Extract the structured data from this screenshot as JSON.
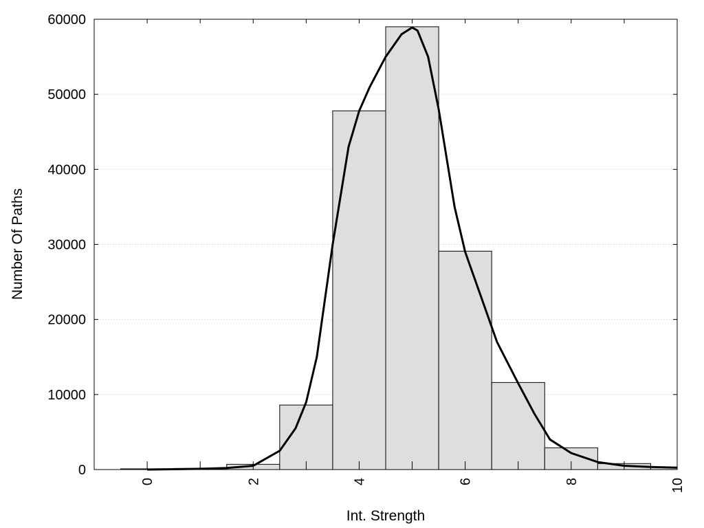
{
  "chart_data": {
    "type": "bar",
    "xlabel": "Int. Strength",
    "ylabel": "Number Of Paths",
    "xlim": [
      -1,
      10
    ],
    "ylim": [
      0,
      60000
    ],
    "x_ticks": [
      "0",
      "2",
      "4",
      "6",
      "8",
      "10"
    ],
    "y_ticks": [
      "0",
      "10000",
      "20000",
      "30000",
      "40000",
      "50000",
      "60000"
    ],
    "grid": true,
    "bars": [
      {
        "x": 0,
        "value": 100
      },
      {
        "x": 1,
        "value": 150
      },
      {
        "x": 2,
        "value": 700
      },
      {
        "x": 3,
        "value": 8600
      },
      {
        "x": 4,
        "value": 47800
      },
      {
        "x": 5,
        "value": 59000
      },
      {
        "x": 6,
        "value": 29100
      },
      {
        "x": 7,
        "value": 11600
      },
      {
        "x": 8,
        "value": 2900
      },
      {
        "x": 9,
        "value": 800
      },
      {
        "x": 10,
        "value": 300
      }
    ],
    "bar_width": 1,
    "curve": [
      {
        "x": 0,
        "y": 0
      },
      {
        "x": 0.5,
        "y": 50
      },
      {
        "x": 1,
        "y": 100
      },
      {
        "x": 1.5,
        "y": 200
      },
      {
        "x": 2,
        "y": 500
      },
      {
        "x": 2.5,
        "y": 2500
      },
      {
        "x": 2.8,
        "y": 5500
      },
      {
        "x": 3,
        "y": 9000
      },
      {
        "x": 3.2,
        "y": 15000
      },
      {
        "x": 3.5,
        "y": 30000
      },
      {
        "x": 3.8,
        "y": 43000
      },
      {
        "x": 4,
        "y": 47800
      },
      {
        "x": 4.2,
        "y": 51000
      },
      {
        "x": 4.5,
        "y": 55000
      },
      {
        "x": 4.8,
        "y": 58000
      },
      {
        "x": 5,
        "y": 58900
      },
      {
        "x": 5.1,
        "y": 58500
      },
      {
        "x": 5.3,
        "y": 55000
      },
      {
        "x": 5.5,
        "y": 48000
      },
      {
        "x": 5.8,
        "y": 35000
      },
      {
        "x": 6,
        "y": 29000
      },
      {
        "x": 6.3,
        "y": 23000
      },
      {
        "x": 6.6,
        "y": 17000
      },
      {
        "x": 7,
        "y": 11500
      },
      {
        "x": 7.3,
        "y": 7500
      },
      {
        "x": 7.6,
        "y": 4000
      },
      {
        "x": 8,
        "y": 2200
      },
      {
        "x": 8.5,
        "y": 1000
      },
      {
        "x": 9,
        "y": 500
      },
      {
        "x": 9.5,
        "y": 350
      },
      {
        "x": 10,
        "y": 250
      }
    ]
  }
}
